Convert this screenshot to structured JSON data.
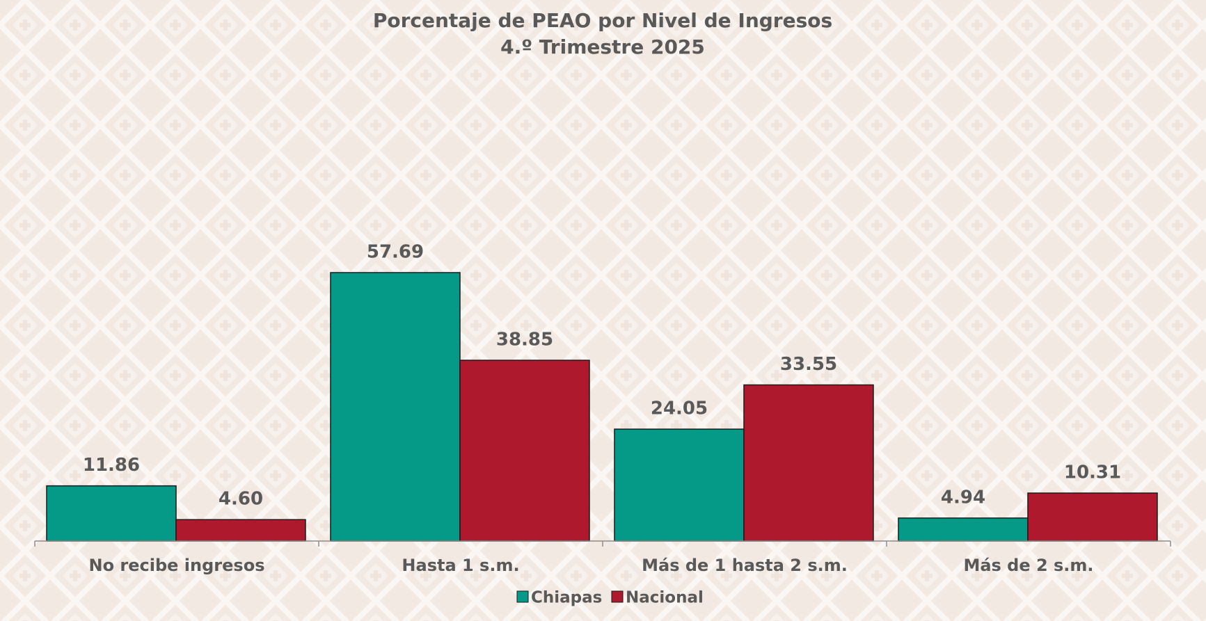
{
  "chart_data": {
    "type": "bar",
    "title": "Porcentaje de PEAO por Nivel de Ingresos",
    "subtitle": "4.º Trimestre 2025",
    "categories": [
      "No recibe ingresos",
      "Hasta 1 s.m.",
      "Más de 1 hasta 2 s.m.",
      "Más de 2 s.m."
    ],
    "series": [
      {
        "name": "Chiapas",
        "color": "#049a87",
        "values": [
          11.86,
          57.69,
          24.05,
          4.94
        ],
        "value_labels": [
          "11.86",
          "57.69",
          "24.05",
          "4.94"
        ]
      },
      {
        "name": "Nacional",
        "color": "#ae192d",
        "values": [
          4.6,
          38.85,
          33.55,
          10.31
        ],
        "value_labels": [
          "4.60",
          "38.85",
          "33.55",
          "10.31"
        ]
      }
    ],
    "legend": "bottom"
  }
}
